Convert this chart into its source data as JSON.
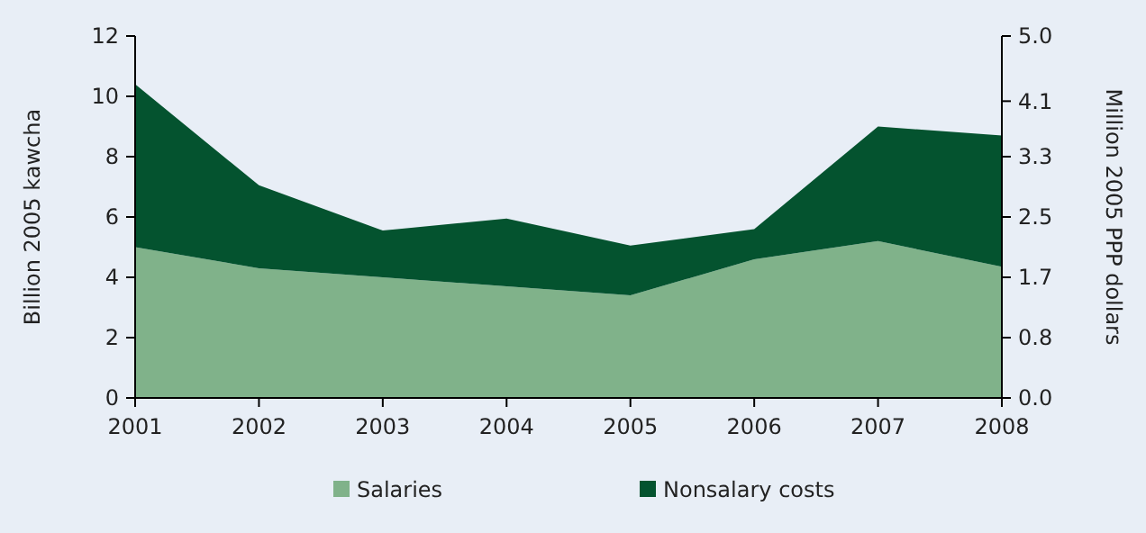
{
  "chart_data": {
    "type": "area",
    "stacked": true,
    "x": [
      2001,
      2002,
      2003,
      2004,
      2005,
      2006,
      2007,
      2008
    ],
    "xlim": [
      2001,
      2008
    ],
    "xticks": [
      2001,
      2002,
      2003,
      2004,
      2005,
      2006,
      2007,
      2008
    ],
    "ylim": [
      0,
      12
    ],
    "yticks": [
      0,
      2,
      4,
      6,
      8,
      10,
      12
    ],
    "y2lim": [
      0,
      5.0
    ],
    "y2ticks": [
      {
        "value": 0,
        "label": "0.0"
      },
      {
        "value": 0.8333,
        "label": "0.8"
      },
      {
        "value": 1.6667,
        "label": "1.7"
      },
      {
        "value": 2.5,
        "label": "2.5"
      },
      {
        "value": 3.3333,
        "label": "3.3"
      },
      {
        "value": 4.1,
        "label": "4.1"
      },
      {
        "value": 5.0,
        "label": "5.0"
      }
    ],
    "ylabel": "Billion 2005 kawcha",
    "y2label": "Million 2005 PPP dollars",
    "series": [
      {
        "name": "Salaries",
        "color": "#80b28a",
        "values": [
          5.0,
          4.3,
          4.0,
          3.7,
          3.4,
          4.6,
          5.2,
          4.35
        ]
      },
      {
        "name": "Nonsalary costs",
        "color": "#04532f",
        "values": [
          5.4,
          2.75,
          1.55,
          2.25,
          1.65,
          1.0,
          3.8,
          4.35
        ]
      }
    ],
    "legend": "bottom",
    "grid": false
  }
}
